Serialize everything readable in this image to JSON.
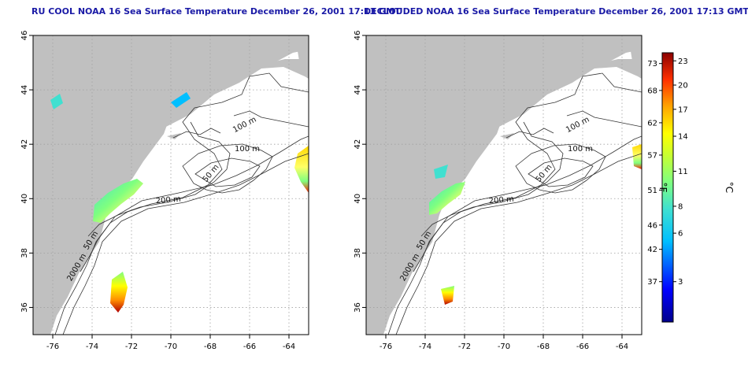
{
  "maps": [
    {
      "title": "RU COOL NOAA 16 Sea Surface Temperature December 26, 2001 17:13 GMT",
      "lat_ticks": [
        "46",
        "44",
        "42",
        "40",
        "38",
        "36"
      ],
      "lon_ticks": [
        "-76",
        "-74",
        "-72",
        "-70",
        "-68",
        "-66",
        "-64"
      ],
      "contour_labels": [
        "100 m",
        "100 m",
        "50 m",
        "200 m",
        "50 m",
        "2000 m"
      ]
    },
    {
      "title": "DECLOUDED NOAA 16 Sea Surface Temperature December 26, 2001 17:13 GMT",
      "lat_ticks": [
        "46",
        "44",
        "42",
        "40",
        "38",
        "36"
      ],
      "lon_ticks": [
        "-76",
        "-74",
        "-72",
        "-70",
        "-68",
        "-66",
        "-64"
      ],
      "contour_labels": [
        "100 m",
        "100 m",
        "50 m",
        "200 m",
        "50 m",
        "2000 m"
      ]
    }
  ],
  "colorbar": {
    "f_label": "°F",
    "c_label": "°C",
    "f_ticks": [
      "73",
      "68",
      "62",
      "57",
      "51",
      "46",
      "42",
      "37"
    ],
    "c_ticks": [
      "23",
      "20",
      "17",
      "14",
      "11",
      "8",
      "6",
      "3"
    ]
  },
  "colors": {
    "land": "#c0c0c0",
    "title": "#1a1aa6",
    "contour": "#333333"
  }
}
